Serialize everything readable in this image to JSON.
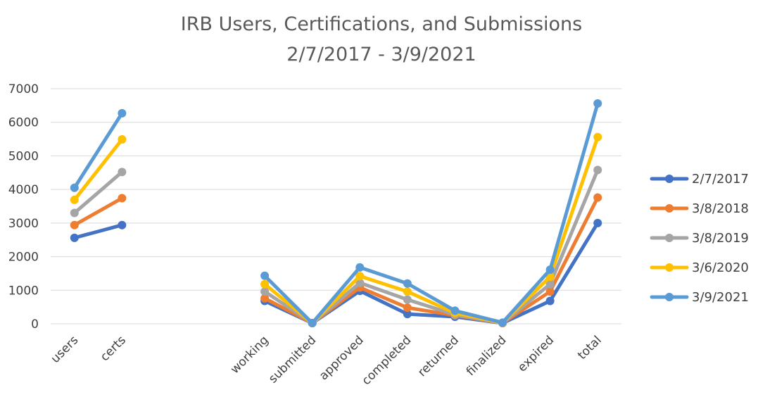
{
  "chart_data": {
    "type": "line",
    "title_lines": [
      "IRB Users, Certifications, and Submissions",
      "2/7/2017 - 3/9/2021"
    ],
    "categories": [
      "users",
      "certs",
      "",
      "",
      "working",
      "submitted",
      "approved",
      "completed",
      "returned",
      "finalized",
      "expired",
      "total"
    ],
    "ylim": [
      0,
      7000
    ],
    "yticks": [
      0,
      1000,
      2000,
      3000,
      4000,
      5000,
      6000,
      7000
    ],
    "grid": true,
    "legend_position": "right",
    "series": [
      {
        "name": "2/7/2017",
        "color": "#4472C4",
        "values": [
          2560,
          2940,
          null,
          null,
          680,
          20,
          980,
          290,
          210,
          20,
          680,
          3000
        ]
      },
      {
        "name": "3/8/2018",
        "color": "#ED7D31",
        "values": [
          2940,
          3740,
          null,
          null,
          760,
          20,
          1080,
          480,
          250,
          20,
          960,
          3760
        ]
      },
      {
        "name": "3/8/2019",
        "color": "#A5A5A5",
        "values": [
          3300,
          4520,
          null,
          null,
          960,
          20,
          1220,
          720,
          270,
          25,
          1180,
          4580
        ]
      },
      {
        "name": "3/6/2020",
        "color": "#FFC000",
        "values": [
          3690,
          5490,
          null,
          null,
          1180,
          20,
          1420,
          960,
          320,
          30,
          1400,
          5560
        ]
      },
      {
        "name": "3/9/2021",
        "color": "#5B9BD5",
        "values": [
          4050,
          6270,
          null,
          null,
          1430,
          20,
          1680,
          1200,
          390,
          35,
          1610,
          6560
        ]
      }
    ]
  }
}
